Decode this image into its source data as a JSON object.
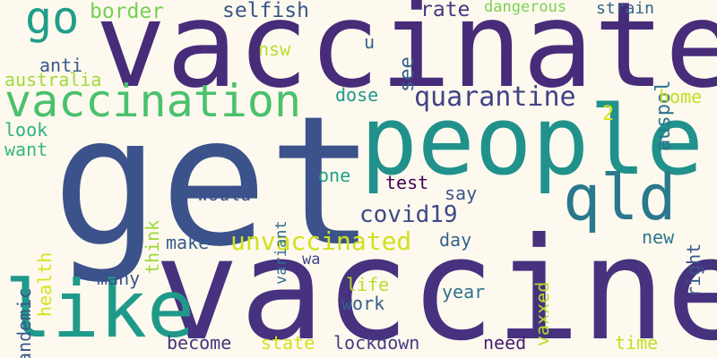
{
  "words": [
    {
      "text": "get",
      "color": "#3b528b",
      "vertical": false
    },
    {
      "text": "vaccine",
      "color": "#46327e",
      "vertical": false
    },
    {
      "text": "vaccinate",
      "color": "#472c7a",
      "vertical": false
    },
    {
      "text": "people",
      "color": "#21918c",
      "vertical": false
    },
    {
      "text": "like",
      "color": "#1f9a8a",
      "vertical": false
    },
    {
      "text": "vaccination",
      "color": "#4ac16d",
      "vertical": false
    },
    {
      "text": "qld",
      "color": "#2a788e",
      "vertical": false
    },
    {
      "text": "go",
      "color": "#1f9e89",
      "vertical": false
    },
    {
      "text": "quarantine",
      "color": "#414487",
      "vertical": false
    },
    {
      "text": "unvaccinated",
      "color": "#d0e11c",
      "vertical": false
    },
    {
      "text": "covid19",
      "color": "#3e4989",
      "vertical": false
    },
    {
      "text": "border",
      "color": "#75d054",
      "vertical": false
    },
    {
      "text": "selfish",
      "color": "#39568c",
      "vertical": false
    },
    {
      "text": "rate",
      "color": "#443983",
      "vertical": false
    },
    {
      "text": "dangerous",
      "color": "#7ad151",
      "vertical": false
    },
    {
      "text": "strain",
      "color": "#33638d",
      "vertical": false
    },
    {
      "text": "auspol",
      "color": "#2c728e",
      "vertical": true
    },
    {
      "text": "see",
      "color": "#35608d",
      "vertical": true
    },
    {
      "text": "u",
      "color": "#33638d",
      "vertical": false
    },
    {
      "text": "nsw",
      "color": "#b5de2b",
      "vertical": false
    },
    {
      "text": "anti",
      "color": "#38598c",
      "vertical": false
    },
    {
      "text": "australia",
      "color": "#a0da39",
      "vertical": false
    },
    {
      "text": "dose",
      "color": "#1f9a8a",
      "vertical": false
    },
    {
      "text": "home",
      "color": "#c2df23",
      "vertical": false
    },
    {
      "text": "2",
      "color": "#d8e219",
      "vertical": false
    },
    {
      "text": "look",
      "color": "#2db27d",
      "vertical": false
    },
    {
      "text": "want",
      "color": "#37b878",
      "vertical": false
    },
    {
      "text": "think",
      "color": "#9fda3a",
      "vertical": true
    },
    {
      "text": "one",
      "color": "#20a386",
      "vertical": false
    },
    {
      "text": "test",
      "color": "#440154",
      "vertical": false
    },
    {
      "text": "say",
      "color": "#3a548c",
      "vertical": false
    },
    {
      "text": "right",
      "color": "#3a548c",
      "vertical": true
    },
    {
      "text": "would",
      "color": "#3b528b",
      "vertical": false
    },
    {
      "text": "variant",
      "color": "#2f6c8e",
      "vertical": true
    },
    {
      "text": "health",
      "color": "#d8e219",
      "vertical": true
    },
    {
      "text": "pandemic",
      "color": "#39568c",
      "vertical": true
    },
    {
      "text": "vaxxed",
      "color": "#b5de2b",
      "vertical": true
    },
    {
      "text": "day",
      "color": "#33638d",
      "vertical": false
    },
    {
      "text": "new",
      "color": "#2a788e",
      "vertical": false
    },
    {
      "text": "make",
      "color": "#375b8d",
      "vertical": false
    },
    {
      "text": "wa",
      "color": "#3e4989",
      "vertical": false
    },
    {
      "text": "many",
      "color": "#3b528b",
      "vertical": false
    },
    {
      "text": "life",
      "color": "#b8de29",
      "vertical": false
    },
    {
      "text": "work",
      "color": "#34618d",
      "vertical": false
    },
    {
      "text": "year",
      "color": "#2c728e",
      "vertical": false
    },
    {
      "text": "become",
      "color": "#46337e",
      "vertical": false
    },
    {
      "text": "state",
      "color": "#d2e21b",
      "vertical": false
    },
    {
      "text": "lockdown",
      "color": "#433e85",
      "vertical": false
    },
    {
      "text": "need",
      "color": "#481f70",
      "vertical": false
    },
    {
      "text": "time",
      "color": "#c2df23",
      "vertical": false
    }
  ]
}
